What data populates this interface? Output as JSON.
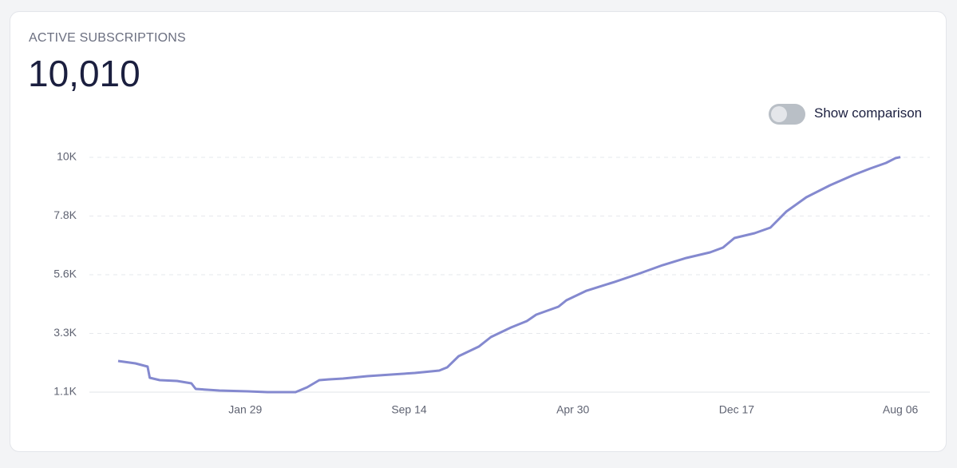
{
  "card": {
    "title": "ACTIVE SUBSCRIPTIONS",
    "value": "10,010"
  },
  "toggle": {
    "label": "Show comparison"
  },
  "chart_data": {
    "type": "line",
    "grid": true,
    "x": [
      0,
      24,
      41,
      44,
      58,
      82,
      102,
      108,
      141,
      180,
      208,
      247,
      263,
      280,
      294,
      313,
      347,
      380,
      413,
      447,
      458,
      474,
      502,
      519,
      547,
      569,
      582,
      613,
      624,
      652,
      691,
      724,
      758,
      791,
      824,
      842,
      858,
      886,
      908,
      930,
      958,
      991,
      1024,
      1047,
      1069,
      1082,
      1089
    ],
    "series": [
      {
        "name": "Active subscriptions",
        "color": "#8489cf",
        "values": [
          2281,
          2190,
          2069,
          1645,
          1554,
          1524,
          1433,
          1221,
          1160,
          1130,
          1100,
          1100,
          1282,
          1554,
          1584,
          1615,
          1705,
          1766,
          1826,
          1917,
          2038,
          2462,
          2825,
          3189,
          3552,
          3794,
          4036,
          4339,
          4581,
          4944,
          5277,
          5580,
          5913,
          6186,
          6397,
          6579,
          6942,
          7124,
          7336,
          7941,
          8486,
          8940,
          9333,
          9576,
          9788,
          9969,
          10010
        ]
      }
    ],
    "xlim": [
      -40,
      1130
    ],
    "xticks": [
      {
        "value": 177,
        "label": "Jan 29"
      },
      {
        "value": 405,
        "label": "Sep 14"
      },
      {
        "value": 633,
        "label": "Apr 30"
      },
      {
        "value": 861,
        "label": "Dec 17"
      },
      {
        "value": 1089,
        "label": "Aug 06"
      }
    ],
    "ylim": [
      1100,
      10000
    ],
    "yticks": [
      {
        "value": 1100,
        "label": "1.1K"
      },
      {
        "value": 3325,
        "label": "3.3K"
      },
      {
        "value": 5550,
        "label": "5.6K"
      },
      {
        "value": 7775,
        "label": "7.8K"
      },
      {
        "value": 10000,
        "label": "10K"
      }
    ]
  }
}
